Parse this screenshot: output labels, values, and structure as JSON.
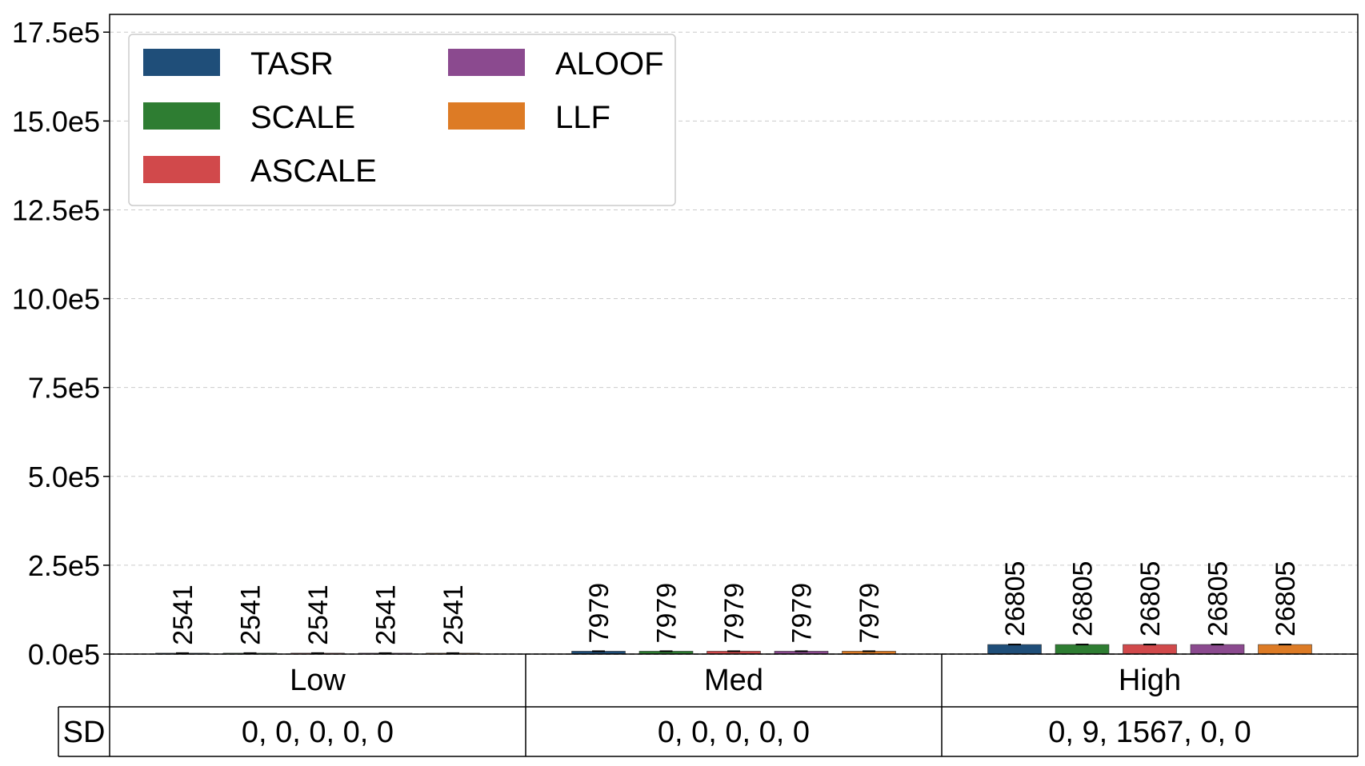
{
  "chart_data": {
    "type": "bar",
    "categories": [
      "Low",
      "Med",
      "High"
    ],
    "series": [
      {
        "name": "TASR",
        "values": [
          2541,
          7979,
          26805
        ],
        "color": "#1f4e79"
      },
      {
        "name": "SCALE",
        "values": [
          2541,
          7979,
          26805
        ],
        "color": "#2e7d32"
      },
      {
        "name": "ASCALE",
        "values": [
          2541,
          7979,
          26805
        ],
        "color": "#d1494b"
      },
      {
        "name": "ALOOF",
        "values": [
          2541,
          7979,
          26805
        ],
        "color": "#8b4a8f"
      },
      {
        "name": "LLF",
        "values": [
          2541,
          7979,
          26805
        ],
        "color": "#dd7b25"
      }
    ],
    "bar_labels": [
      [
        "2541",
        "2541",
        "2541",
        "2541",
        "2541"
      ],
      [
        "7979",
        "7979",
        "7979",
        "7979",
        "7979"
      ],
      [
        "26805",
        "26805",
        "26805",
        "26805",
        "26805"
      ]
    ],
    "yticks": [
      0,
      250000,
      500000,
      750000,
      1000000,
      1250000,
      1500000,
      1750000
    ],
    "ytick_labels": [
      "0.0e5",
      "2.5e5",
      "5.0e5",
      "7.5e5",
      "10.0e5",
      "12.5e5",
      "15.0e5",
      "17.5e5"
    ],
    "ylim": [
      0,
      1800000
    ],
    "grid": true,
    "legend_position": "top-left",
    "sd_table": {
      "header": "SD",
      "values": [
        "0, 0, 0, 0, 0",
        "0, 0, 0, 0, 0",
        "0, 9, 1567, 0, 0"
      ]
    }
  }
}
